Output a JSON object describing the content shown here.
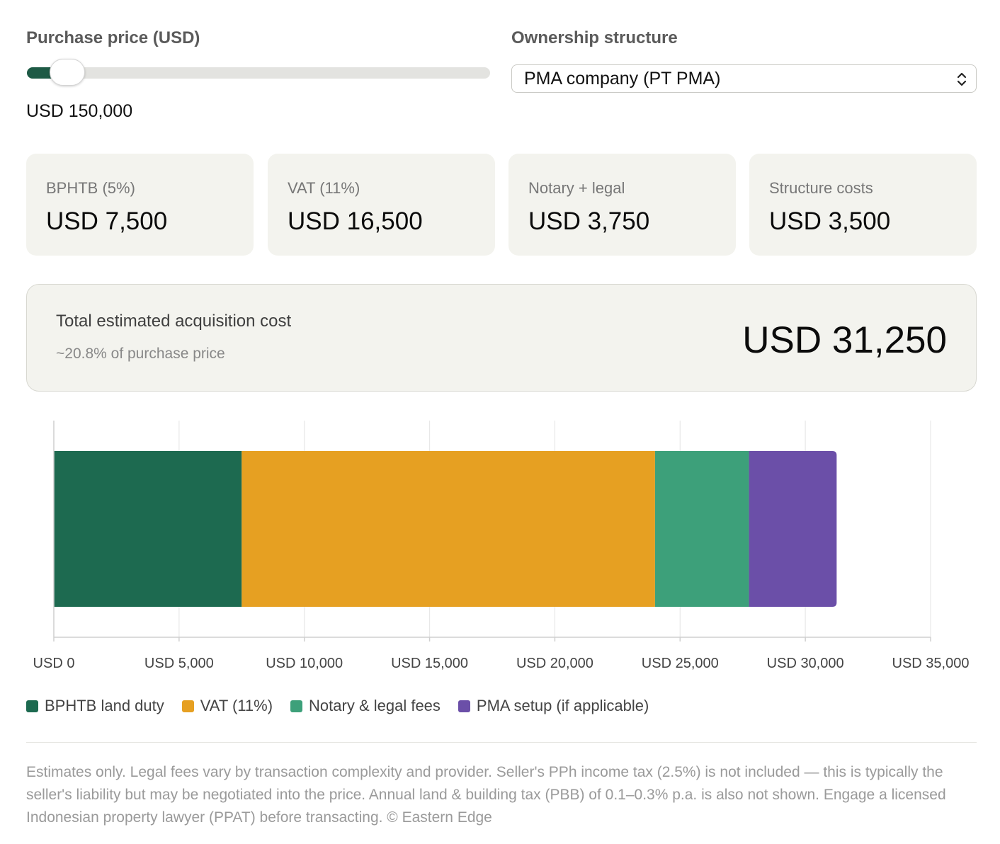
{
  "price": {
    "label": "Purchase price (USD)",
    "value_text": "USD 150,000",
    "slider_fraction": 0.05
  },
  "ownership": {
    "label": "Ownership structure",
    "selected": "PMA company (PT PMA)"
  },
  "cards": [
    {
      "title": "BPHTB (5%)",
      "value": "USD 7,500"
    },
    {
      "title": "VAT (11%)",
      "value": "USD 16,500"
    },
    {
      "title": "Notary + legal",
      "value": "USD 3,750"
    },
    {
      "title": "Structure costs",
      "value": "USD 3,500"
    }
  ],
  "total": {
    "title": "Total estimated acquisition cost",
    "subtitle": "~20.8% of purchase price",
    "value": "USD 31,250"
  },
  "chart_data": {
    "type": "bar",
    "orientation": "horizontal-stacked",
    "categories": [
      ""
    ],
    "series": [
      {
        "name": "BPHTB land duty",
        "values": [
          7500
        ],
        "color": "#1d6a50"
      },
      {
        "name": "VAT (11%)",
        "values": [
          16500
        ],
        "color": "#e6a022"
      },
      {
        "name": "Notary & legal fees",
        "values": [
          3750
        ],
        "color": "#3da07a"
      },
      {
        "name": "PMA setup (if applicable)",
        "values": [
          3500
        ],
        "color": "#6b4fa8"
      }
    ],
    "xlim": [
      0,
      35000
    ],
    "xticks": [
      {
        "value": 0,
        "label": "USD 0"
      },
      {
        "value": 5000,
        "label": "USD 5,000"
      },
      {
        "value": 10000,
        "label": "USD 10,000"
      },
      {
        "value": 15000,
        "label": "USD 15,000"
      },
      {
        "value": 20000,
        "label": "USD 20,000"
      },
      {
        "value": 25000,
        "label": "USD 25,000"
      },
      {
        "value": 30000,
        "label": "USD 30,000"
      },
      {
        "value": 35000,
        "label": "USD 35,000"
      }
    ],
    "grid": true,
    "legend_position": "bottom-left"
  },
  "legend": [
    {
      "label": "BPHTB land duty",
      "color": "#1d6a50"
    },
    {
      "label": "VAT (11%)",
      "color": "#e6a022"
    },
    {
      "label": "Notary & legal fees",
      "color": "#3da07a"
    },
    {
      "label": "PMA setup (if applicable)",
      "color": "#6b4fa8"
    }
  ],
  "disclaimer": "Estimates only. Legal fees vary by transaction complexity and provider. Seller's PPh income tax (2.5%) is not included — this is typically the seller's liability but may be negotiated into the price. Annual land & building tax (PBB) of 0.1–0.3% p.a. is also not shown. Engage a licensed Indonesian property lawyer (PPAT) before transacting. © Eastern Edge",
  "icons": {
    "select": "chevron-up-down-icon"
  }
}
